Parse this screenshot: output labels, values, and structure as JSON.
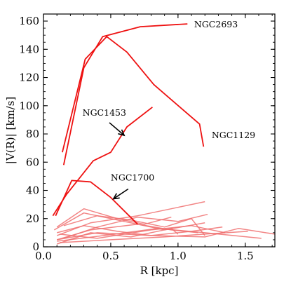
{
  "chart_data": {
    "type": "line",
    "xlabel": "R [kpc]",
    "ylabel": "|V(R)| [km/s]",
    "xlim": [
      0,
      1.72
    ],
    "ylim": [
      0,
      165
    ],
    "x_ticks": [
      0.0,
      0.5,
      1.0,
      1.5
    ],
    "x_tick_labels": [
      "0.0",
      "0.5",
      "1.0",
      "1.5"
    ],
    "y_ticks": [
      0,
      20,
      40,
      60,
      80,
      100,
      120,
      140,
      160
    ],
    "y_tick_labels": [
      "0",
      "20",
      "40",
      "60",
      "80",
      "100",
      "120",
      "140",
      "160"
    ],
    "grid": false,
    "colors": {
      "highlight": "#ee1111",
      "faint": "#f07070",
      "axis": "#000000"
    },
    "series": [
      {
        "name": "NGC2693",
        "highlight": true,
        "x": [
          0.15,
          0.3,
          0.44,
          0.72,
          1.07
        ],
        "y": [
          58,
          127,
          149,
          156,
          158
        ]
      },
      {
        "name": "NGC1129",
        "highlight": true,
        "x": [
          0.14,
          0.31,
          0.47,
          0.62,
          0.82,
          1.16,
          1.19
        ],
        "y": [
          67,
          133,
          149,
          138,
          115,
          87,
          71
        ]
      },
      {
        "name": "NGC1453",
        "highlight": true,
        "x": [
          0.07,
          0.17,
          0.37,
          0.5,
          0.62,
          0.81
        ],
        "y": [
          22,
          37,
          61,
          67,
          85,
          99
        ]
      },
      {
        "name": "NGC1700",
        "highlight": true,
        "x": [
          0.09,
          0.21,
          0.35,
          0.5,
          0.7
        ],
        "y": [
          22,
          47,
          46,
          35,
          16
        ]
      },
      {
        "highlight": false,
        "x": [
          0.1,
          0.35,
          0.7,
          0.95,
          1.15
        ],
        "y": [
          5,
          12,
          16,
          12,
          10
        ]
      },
      {
        "highlight": false,
        "x": [
          0.1,
          0.3,
          0.55,
          0.8,
          1.1,
          1.33
        ],
        "y": [
          10,
          15,
          11,
          8,
          11,
          14
        ]
      },
      {
        "highlight": false,
        "x": [
          0.15,
          0.4,
          0.65,
          0.9,
          1.1,
          1.2
        ],
        "y": [
          15,
          22,
          19,
          14,
          20,
          8
        ]
      },
      {
        "highlight": false,
        "x": [
          0.1,
          0.35,
          0.7,
          1.0,
          1.2
        ],
        "y": [
          8,
          17,
          22,
          28,
          32
        ]
      },
      {
        "highlight": false,
        "x": [
          0.1,
          0.4,
          0.8,
          1.2,
          1.45,
          1.72
        ],
        "y": [
          5,
          10,
          8,
          7,
          13,
          9
        ]
      },
      {
        "highlight": false,
        "x": [
          0.12,
          0.5,
          0.9,
          1.2,
          1.52
        ],
        "y": [
          3,
          5,
          7,
          9,
          11
        ]
      },
      {
        "highlight": false,
        "x": [
          0.08,
          0.3,
          0.6,
          0.9,
          1.2
        ],
        "y": [
          12,
          24,
          18,
          12,
          17
        ]
      },
      {
        "highlight": false,
        "x": [
          0.1,
          0.3,
          0.55,
          0.75,
          0.95
        ],
        "y": [
          14,
          27,
          20,
          16,
          21
        ]
      },
      {
        "highlight": false,
        "x": [
          0.15,
          0.4,
          0.7,
          1.0,
          1.22
        ],
        "y": [
          6,
          14,
          21,
          18,
          23
        ]
      },
      {
        "highlight": false,
        "x": [
          0.1,
          0.45,
          0.85,
          1.2,
          1.62
        ],
        "y": [
          4,
          8,
          13,
          10,
          6
        ]
      },
      {
        "highlight": false,
        "x": [
          0.12,
          0.4,
          0.8,
          1.1,
          1.35
        ],
        "y": [
          9,
          6,
          12,
          15,
          10
        ]
      },
      {
        "highlight": false,
        "x": [
          0.1,
          0.35,
          0.65,
          0.95,
          1.0
        ],
        "y": [
          2,
          10,
          7,
          13,
          9
        ]
      }
    ],
    "annotations": [
      {
        "text": "NGC2693",
        "x": 1.12,
        "y": 157.5
      },
      {
        "text": "NGC1129",
        "x": 1.25,
        "y": 79
      },
      {
        "text": "NGC1453",
        "x": 0.29,
        "y": 95
      },
      {
        "text": "NGC1700",
        "x": 0.5,
        "y": 49
      }
    ],
    "arrows": [
      {
        "from": [
          0.49,
          88
        ],
        "to": [
          0.6,
          79
        ]
      },
      {
        "from": [
          0.63,
          41
        ],
        "to": [
          0.52,
          34
        ]
      }
    ]
  }
}
